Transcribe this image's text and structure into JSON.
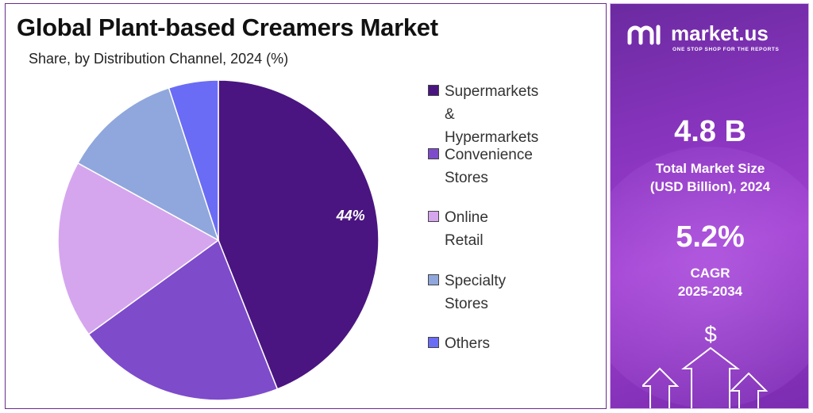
{
  "chart_data": {
    "type": "pie",
    "title": "Global Plant-based Creamers Market",
    "subtitle": "Share, by Distribution Channel, 2024 (%)",
    "legend_position": "right",
    "slices": [
      {
        "label": "Supermarkets &\nHypermarkets",
        "value": 44,
        "color": "#4a1580",
        "data_label": "44%"
      },
      {
        "label": "Convenience Stores",
        "value": 21,
        "color": "#7e4bcb",
        "data_label": ""
      },
      {
        "label": "Online Retail",
        "value": 18,
        "color": "#d5a6ee",
        "data_label": ""
      },
      {
        "label": "Specialty Stores",
        "value": 12,
        "color": "#8fa7dc",
        "data_label": ""
      },
      {
        "label": "Others",
        "value": 5,
        "color": "#6a6cf5",
        "data_label": ""
      }
    ]
  },
  "side_panel": {
    "brand": "market.us",
    "tagline": "ONE STOP SHOP FOR THE REPORTS",
    "market_size_value": "4.8 B",
    "market_size_label": "Total Market Size\n(USD Billion), 2024",
    "cagr_value": "5.2%",
    "cagr_label": "CAGR\n2025-2034",
    "icons": [
      "market-us-logo-icon",
      "dollar-icon",
      "arrow-up-icon"
    ]
  }
}
